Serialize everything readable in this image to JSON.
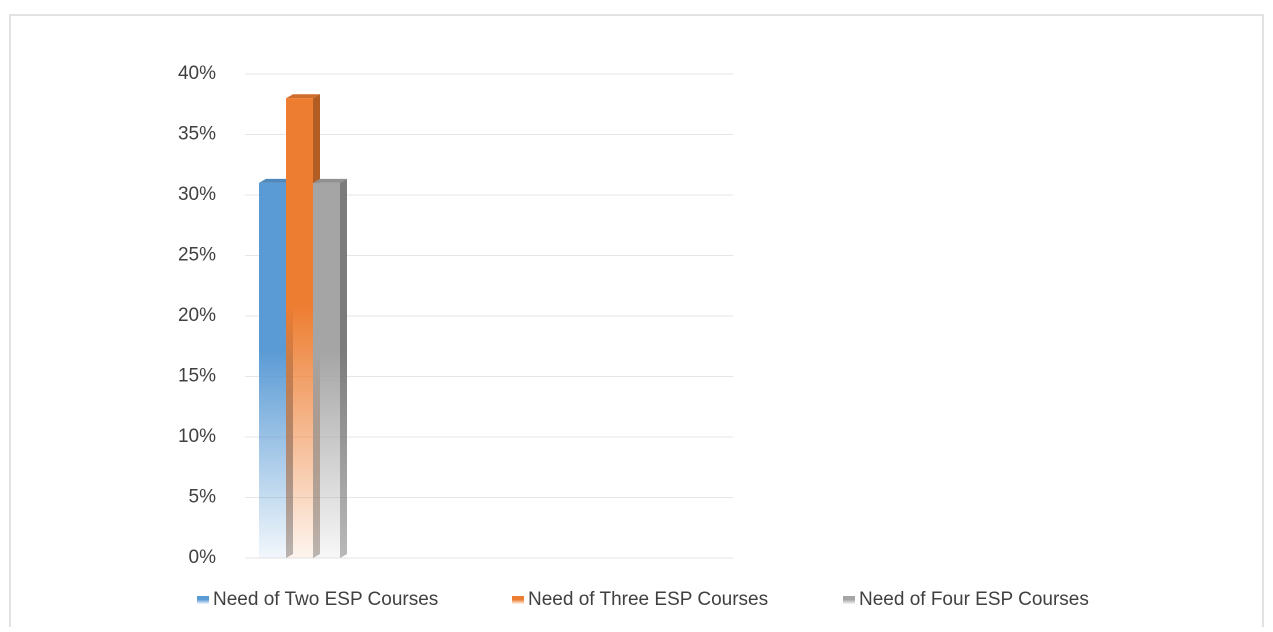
{
  "chart_data": {
    "type": "bar",
    "categories": [
      null
    ],
    "series": [
      {
        "name": "Need of Two ESP Courses",
        "color": "#5b9bd5",
        "values": [
          31
        ]
      },
      {
        "name": "Need of Three ESP Courses",
        "color": "#ed7d31",
        "values": [
          38
        ]
      },
      {
        "name": "Need of Four ESP Courses",
        "color": "#a5a5a5",
        "values": [
          31
        ]
      }
    ],
    "ylim": [
      0,
      40
    ],
    "yticks": [
      {
        "value": 0,
        "label": "0%"
      },
      {
        "value": 5,
        "label": "5%"
      },
      {
        "value": 10,
        "label": "10%"
      },
      {
        "value": 15,
        "label": "15%"
      },
      {
        "value": 20,
        "label": "20%"
      },
      {
        "value": 25,
        "label": "25%"
      },
      {
        "value": 30,
        "label": "30%"
      },
      {
        "value": 35,
        "label": "35%"
      },
      {
        "value": 40,
        "label": "40%"
      }
    ],
    "grid": true,
    "legend": "bottom"
  }
}
